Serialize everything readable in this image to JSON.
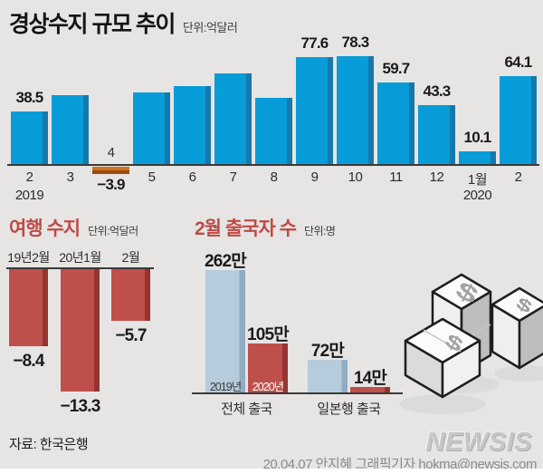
{
  "header": {
    "title": "경상수지 규모 추이",
    "unit": "단위:억달러"
  },
  "colors": {
    "background": "#e6e5e4",
    "bar_blue": "#089cd8",
    "bar_blue_edge": "#1778aa",
    "bar_orange": "#d2711f",
    "bar_orange_edge": "#9a4a10",
    "bar_red": "#bf4f4b",
    "bar_red_edge": "#943531",
    "bar_lightblue": "#b6cbdb",
    "bar_lightblue_edge": "#8facc3",
    "sub_title_red": "#bf4a45",
    "axis": "#3a3a3a"
  },
  "chart_data": [
    {
      "id": "current-account",
      "type": "bar",
      "title": "경상수지 규모 추이",
      "unit": "단위:억달러",
      "categories": [
        "2",
        "3",
        "4",
        "5",
        "6",
        "7",
        "8",
        "9",
        "10",
        "11",
        "12",
        "1월",
        "2"
      ],
      "values": [
        38.5,
        50,
        -3.9,
        52,
        57,
        66,
        48.5,
        77.6,
        78.3,
        59.7,
        43.3,
        10.1,
        64.1
      ],
      "value_labels": [
        "38.5",
        "",
        "−3.9",
        "",
        "",
        "",
        "",
        "77.6",
        "78.3",
        "59.7",
        "43.3",
        "10.1",
        "64.1"
      ],
      "year_markers": [
        {
          "index": 0,
          "label": "2019"
        },
        {
          "index": 11,
          "label": "2020"
        }
      ],
      "ylim": [
        -5,
        85
      ],
      "grid": false
    },
    {
      "id": "travel-balance",
      "type": "bar",
      "title": "여행 수지",
      "unit": "단위:억달러",
      "categories": [
        "19년2월",
        "20년1월",
        "2월"
      ],
      "values": [
        -8.4,
        -13.3,
        -5.7
      ],
      "value_labels": [
        "−8.4",
        "−13.3",
        "−5.7"
      ],
      "ylim": [
        -14,
        0
      ],
      "grid": false
    },
    {
      "id": "february-departures",
      "type": "bar",
      "title": "2월 출국자 수",
      "unit": "단위:명",
      "categories": [
        "전체 출국",
        "일본행 출국"
      ],
      "series": [
        {
          "name": "2019년",
          "values": [
            2620000,
            720000
          ],
          "value_labels": [
            "262만",
            "72만"
          ]
        },
        {
          "name": "2020년",
          "values": [
            1050000,
            140000
          ],
          "value_labels": [
            "105만",
            "14만"
          ]
        }
      ],
      "ylim": [
        0,
        2800000
      ],
      "grid": false
    }
  ],
  "footer": {
    "source": "자료: 한국은행",
    "logo": "NEWSIS",
    "credit": "20.04.07 안지혜 그래픽기자 hokma@newsis.com"
  }
}
